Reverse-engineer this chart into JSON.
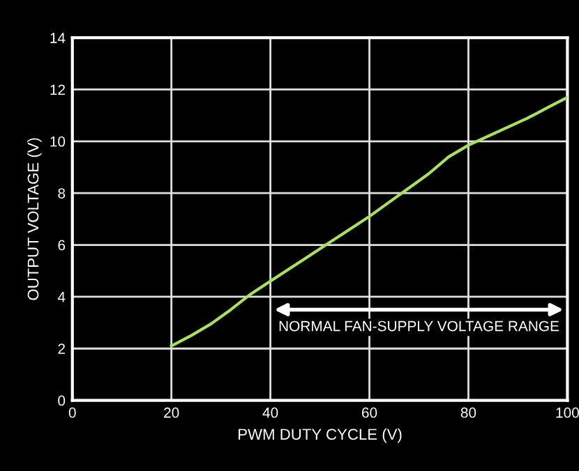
{
  "chart_data": {
    "type": "line",
    "xlabel": "PWM DUTY CYCLE (V)",
    "ylabel": "OUTPUT VOLTAGE (V)",
    "x": [
      20,
      24,
      28,
      32,
      36,
      40,
      44,
      48,
      52,
      56,
      60,
      64,
      68,
      72,
      76,
      80,
      84,
      88,
      92,
      96,
      100
    ],
    "series": [
      {
        "color": "#a8e060",
        "values": [
          2.1,
          2.5,
          2.95,
          3.5,
          4.1,
          4.6,
          5.1,
          5.6,
          6.1,
          6.6,
          7.1,
          7.65,
          8.2,
          8.75,
          9.4,
          9.85,
          10.2,
          10.55,
          10.9,
          11.3,
          11.7
        ]
      }
    ],
    "annotations": [
      "NORMAL FAN-SUPPLY VOLTAGE RANGE"
    ],
    "xlim": [
      0,
      100
    ],
    "xticks": [
      0,
      20,
      40,
      60,
      80,
      100
    ],
    "ylim": [
      0,
      14
    ],
    "yticks": [
      0,
      2,
      4,
      6,
      8,
      10,
      12,
      14
    ],
    "grid": true,
    "marker": "none",
    "line_style": "solid"
  }
}
